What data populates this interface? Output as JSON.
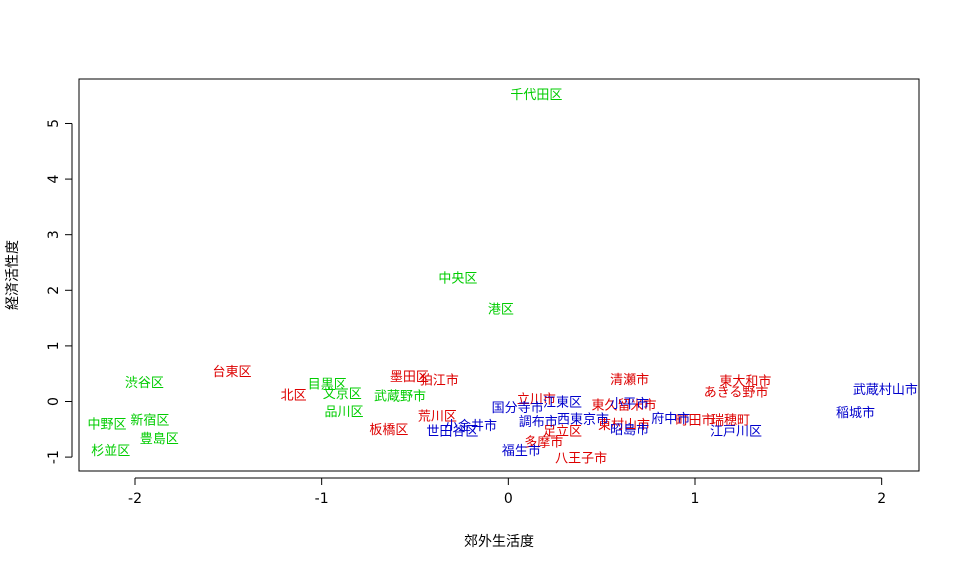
{
  "chart_data": {
    "type": "scatter",
    "title": "",
    "xlabel": "郊外生活度",
    "ylabel": "経済活性度",
    "xlim": [
      -2.3,
      2.2
    ],
    "ylim": [
      -1.25,
      5.8
    ],
    "xticks": [
      -2,
      -1,
      0,
      1,
      2
    ],
    "yticks": [
      -1,
      0,
      1,
      2,
      3,
      4,
      5
    ],
    "xtick_labels": [
      "-2",
      "-1",
      "0",
      "1",
      "2"
    ],
    "ytick_labels": [
      "-1",
      "0",
      "1",
      "2",
      "3",
      "4",
      "5"
    ],
    "grid": false,
    "legend": "none",
    "colors": {
      "green": "#00cc00",
      "red": "#dd0000",
      "blue": "#0000cc"
    },
    "points": [
      {
        "label": "千代田区",
        "x": 0.15,
        "y": 5.5,
        "color": "green"
      },
      {
        "label": "中央区",
        "x": -0.27,
        "y": 2.2,
        "color": "green"
      },
      {
        "label": "港区",
        "x": -0.04,
        "y": 1.65,
        "color": "green"
      },
      {
        "label": "渋谷区",
        "x": -1.95,
        "y": 0.32,
        "color": "green"
      },
      {
        "label": "新宿区",
        "x": -1.92,
        "y": -0.35,
        "color": "green"
      },
      {
        "label": "中野区",
        "x": -2.15,
        "y": -0.42,
        "color": "green"
      },
      {
        "label": "豊島区",
        "x": -1.87,
        "y": -0.68,
        "color": "green"
      },
      {
        "label": "杉並区",
        "x": -2.13,
        "y": -0.9,
        "color": "green"
      },
      {
        "label": "目黒区",
        "x": -0.97,
        "y": 0.3,
        "color": "green"
      },
      {
        "label": "文京区",
        "x": -0.89,
        "y": 0.13,
        "color": "green"
      },
      {
        "label": "品川区",
        "x": -0.88,
        "y": -0.2,
        "color": "green"
      },
      {
        "label": "武蔵野市",
        "x": -0.58,
        "y": 0.08,
        "color": "green"
      },
      {
        "label": "台東区",
        "x": -1.48,
        "y": 0.52,
        "color": "red"
      },
      {
        "label": "北区",
        "x": -1.15,
        "y": 0.1,
        "color": "red"
      },
      {
        "label": "墨田区",
        "x": -0.53,
        "y": 0.43,
        "color": "red"
      },
      {
        "label": "狛江市",
        "x": -0.37,
        "y": 0.37,
        "color": "red"
      },
      {
        "label": "荒川区",
        "x": -0.38,
        "y": -0.28,
        "color": "red"
      },
      {
        "label": "板橋区",
        "x": -0.64,
        "y": -0.52,
        "color": "red"
      },
      {
        "label": "立川市",
        "x": 0.15,
        "y": 0.03,
        "color": "red"
      },
      {
        "label": "東久留米市",
        "x": 0.62,
        "y": -0.08,
        "color": "red"
      },
      {
        "label": "清瀬市",
        "x": 0.65,
        "y": 0.38,
        "color": "red"
      },
      {
        "label": "東大和市",
        "x": 1.27,
        "y": 0.35,
        "color": "red"
      },
      {
        "label": "あきる野市",
        "x": 1.22,
        "y": 0.15,
        "color": "red"
      },
      {
        "label": "町田市",
        "x": 1.0,
        "y": -0.35,
        "color": "red"
      },
      {
        "label": "瑞穂町",
        "x": 1.19,
        "y": -0.35,
        "color": "red"
      },
      {
        "label": "東村山市",
        "x": 0.62,
        "y": -0.43,
        "color": "red"
      },
      {
        "label": "多摩市",
        "x": 0.19,
        "y": -0.75,
        "color": "red"
      },
      {
        "label": "八王子市",
        "x": 0.39,
        "y": -1.03,
        "color": "red"
      },
      {
        "label": "足立区",
        "x": 0.29,
        "y": -0.55,
        "color": "red"
      },
      {
        "label": "武蔵村山市",
        "x": 2.02,
        "y": 0.2,
        "color": "blue"
      },
      {
        "label": "稲城市",
        "x": 1.86,
        "y": -0.22,
        "color": "blue"
      },
      {
        "label": "江戸川区",
        "x": 1.22,
        "y": -0.55,
        "color": "blue"
      },
      {
        "label": "江東区",
        "x": 0.29,
        "y": -0.03,
        "color": "blue"
      },
      {
        "label": "国分寺市",
        "x": 0.05,
        "y": -0.13,
        "color": "blue"
      },
      {
        "label": "西東京市",
        "x": 0.4,
        "y": -0.33,
        "color": "blue"
      },
      {
        "label": "小金井市",
        "x": -0.2,
        "y": -0.45,
        "color": "blue"
      },
      {
        "label": "世田谷区",
        "x": -0.3,
        "y": -0.55,
        "color": "blue"
      },
      {
        "label": "調布市",
        "x": 0.16,
        "y": -0.38,
        "color": "blue"
      },
      {
        "label": "府中市",
        "x": 0.87,
        "y": -0.32,
        "color": "blue"
      },
      {
        "label": "昭島市",
        "x": 0.65,
        "y": -0.52,
        "color": "blue"
      },
      {
        "label": "福生市",
        "x": 0.07,
        "y": -0.9,
        "color": "blue"
      },
      {
        "label": "小平市",
        "x": 0.65,
        "y": -0.05,
        "color": "blue"
      }
    ]
  }
}
